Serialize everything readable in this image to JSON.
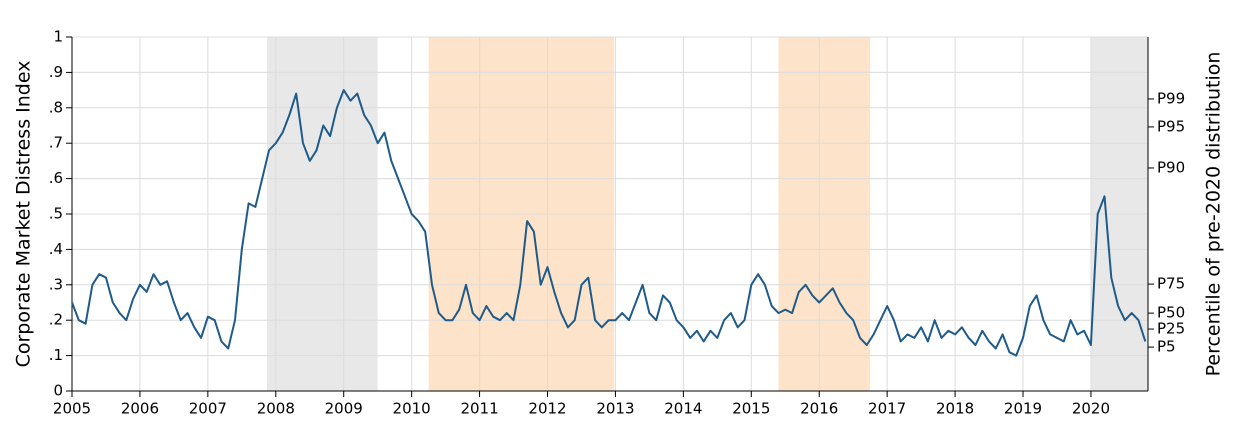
{
  "chart_data": {
    "type": "line",
    "y_label": "Corporate Market Distress Index",
    "y2_label": "Percentile of pre-2020 distribution",
    "color": "#1f5b8a",
    "grid": true,
    "xlim": [
      2005,
      2020.84
    ],
    "xticks": [
      2005,
      2006,
      2007,
      2008,
      2009,
      2010,
      2011,
      2012,
      2013,
      2014,
      2015,
      2016,
      2017,
      2018,
      2019,
      2020
    ],
    "ylim": [
      0,
      1
    ],
    "yticks": [
      0,
      {
        "value": 0.1,
        "label": ".1"
      },
      {
        "value": 0.2,
        "label": ".2"
      },
      {
        "value": 0.3,
        "label": ".3"
      },
      {
        "value": 0.4,
        "label": ".4"
      },
      {
        "value": 0.5,
        "label": ".5"
      },
      {
        "value": 0.6,
        "label": ".6"
      },
      {
        "value": 0.7,
        "label": ".7"
      },
      {
        "value": 0.8,
        "label": ".8"
      },
      {
        "value": 0.9,
        "label": ".9"
      },
      1
    ],
    "y2lim": [
      0,
      1
    ],
    "y2ticks": [
      {
        "value": 0.124,
        "label": "P5"
      },
      {
        "value": 0.175,
        "label": "P25"
      },
      {
        "value": 0.22,
        "label": "P50"
      },
      {
        "value": 0.302,
        "label": "P75"
      },
      {
        "value": 0.63,
        "label": "P90"
      },
      {
        "value": 0.746,
        "label": "P95"
      },
      {
        "value": 0.825,
        "label": "P99"
      }
    ],
    "shaded_regions": [
      {
        "start": 2007.87,
        "end": 2009.5,
        "color": "#e8e8e8"
      },
      {
        "start": 2010.25,
        "end": 2012.98,
        "color": "#fde3c9"
      },
      {
        "start": 2015.4,
        "end": 2016.75,
        "color": "#fde3c9"
      },
      {
        "start": 2020.0,
        "end": 2020.84,
        "color": "#e8e8e8"
      }
    ],
    "x": [
      2005.0,
      2005.1,
      2005.2,
      2005.3,
      2005.4,
      2005.5,
      2005.6,
      2005.7,
      2005.8,
      2005.9,
      2006.0,
      2006.1,
      2006.2,
      2006.3,
      2006.4,
      2006.5,
      2006.6,
      2006.7,
      2006.8,
      2006.9,
      2007.0,
      2007.1,
      2007.2,
      2007.3,
      2007.4,
      2007.5,
      2007.6,
      2007.7,
      2007.8,
      2007.9,
      2008.0,
      2008.1,
      2008.2,
      2008.3,
      2008.4,
      2008.5,
      2008.6,
      2008.7,
      2008.8,
      2008.9,
      2009.0,
      2009.1,
      2009.2,
      2009.3,
      2009.4,
      2009.5,
      2009.6,
      2009.7,
      2009.8,
      2009.9,
      2010.0,
      2010.1,
      2010.2,
      2010.3,
      2010.4,
      2010.5,
      2010.6,
      2010.7,
      2010.8,
      2010.9,
      2011.0,
      2011.1,
      2011.2,
      2011.3,
      2011.4,
      2011.5,
      2011.6,
      2011.7,
      2011.8,
      2011.9,
      2012.0,
      2012.1,
      2012.2,
      2012.3,
      2012.4,
      2012.5,
      2012.6,
      2012.7,
      2012.8,
      2012.9,
      2013.0,
      2013.1,
      2013.2,
      2013.3,
      2013.4,
      2013.5,
      2013.6,
      2013.7,
      2013.8,
      2013.9,
      2014.0,
      2014.1,
      2014.2,
      2014.3,
      2014.4,
      2014.5,
      2014.6,
      2014.7,
      2014.8,
      2014.9,
      2015.0,
      2015.1,
      2015.2,
      2015.3,
      2015.4,
      2015.5,
      2015.6,
      2015.7,
      2015.8,
      2015.9,
      2016.0,
      2016.1,
      2016.2,
      2016.3,
      2016.4,
      2016.5,
      2016.6,
      2016.7,
      2016.8,
      2016.9,
      2017.0,
      2017.1,
      2017.2,
      2017.3,
      2017.4,
      2017.5,
      2017.6,
      2017.7,
      2017.8,
      2017.9,
      2018.0,
      2018.1,
      2018.2,
      2018.3,
      2018.4,
      2018.5,
      2018.6,
      2018.7,
      2018.8,
      2018.9,
      2019.0,
      2019.1,
      2019.2,
      2019.3,
      2019.4,
      2019.5,
      2019.6,
      2019.7,
      2019.8,
      2019.9,
      2020.0,
      2020.1,
      2020.2,
      2020.3,
      2020.4,
      2020.5,
      2020.6,
      2020.7,
      2020.8
    ],
    "values": [
      0.25,
      0.2,
      0.19,
      0.3,
      0.33,
      0.32,
      0.25,
      0.22,
      0.2,
      0.26,
      0.3,
      0.28,
      0.33,
      0.3,
      0.31,
      0.25,
      0.2,
      0.22,
      0.18,
      0.15,
      0.21,
      0.2,
      0.14,
      0.12,
      0.2,
      0.4,
      0.53,
      0.52,
      0.6,
      0.68,
      0.7,
      0.73,
      0.78,
      0.84,
      0.7,
      0.65,
      0.68,
      0.75,
      0.72,
      0.8,
      0.85,
      0.82,
      0.84,
      0.78,
      0.75,
      0.7,
      0.73,
      0.65,
      0.6,
      0.55,
      0.5,
      0.48,
      0.45,
      0.3,
      0.22,
      0.2,
      0.2,
      0.23,
      0.3,
      0.22,
      0.2,
      0.24,
      0.21,
      0.2,
      0.22,
      0.2,
      0.3,
      0.48,
      0.45,
      0.3,
      0.35,
      0.28,
      0.22,
      0.18,
      0.2,
      0.3,
      0.32,
      0.2,
      0.18,
      0.2,
      0.2,
      0.22,
      0.2,
      0.25,
      0.3,
      0.22,
      0.2,
      0.27,
      0.25,
      0.2,
      0.18,
      0.15,
      0.17,
      0.14,
      0.17,
      0.15,
      0.2,
      0.22,
      0.18,
      0.2,
      0.3,
      0.33,
      0.3,
      0.24,
      0.22,
      0.23,
      0.22,
      0.28,
      0.3,
      0.27,
      0.25,
      0.27,
      0.29,
      0.25,
      0.22,
      0.2,
      0.15,
      0.13,
      0.16,
      0.2,
      0.24,
      0.2,
      0.14,
      0.16,
      0.15,
      0.18,
      0.14,
      0.2,
      0.15,
      0.17,
      0.16,
      0.18,
      0.15,
      0.13,
      0.17,
      0.14,
      0.12,
      0.16,
      0.11,
      0.1,
      0.15,
      0.24,
      0.27,
      0.2,
      0.16,
      0.15,
      0.14,
      0.2,
      0.16,
      0.17,
      0.13,
      0.5,
      0.55,
      0.32,
      0.24,
      0.2,
      0.22,
      0.2,
      0.14
    ]
  }
}
